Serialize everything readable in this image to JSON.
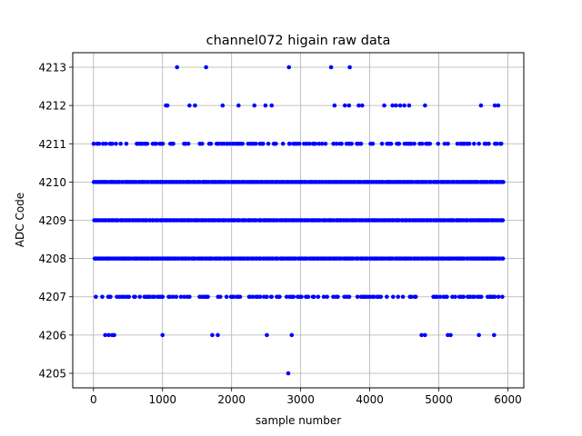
{
  "chart_data": {
    "type": "scatter",
    "title": "channel072 higain raw data",
    "xlabel": "sample number",
    "ylabel": "ADC Code",
    "xlim": [
      -300,
      6230
    ],
    "ylim": [
      4204.62,
      4213.38
    ],
    "xticks": [
      0,
      1000,
      2000,
      3000,
      4000,
      5000,
      6000
    ],
    "yticks": [
      4205,
      4206,
      4207,
      4208,
      4209,
      4210,
      4211,
      4212,
      4213
    ],
    "grid": true,
    "marker_color": "#0000ff",
    "sample_range": [
      0,
      5930
    ],
    "dense_levels": [
      4207,
      4208,
      4209,
      4210,
      4211
    ],
    "sparse_points": [
      {
        "y": 4213,
        "x": [
          1210,
          1630,
          2830,
          3440,
          3710
        ]
      },
      {
        "y": 4212,
        "x": [
          1050,
          1070,
          1390,
          1470,
          1870,
          2100,
          2330,
          2490,
          2580,
          3490,
          3640,
          3700,
          3840,
          3890,
          4210,
          4330,
          4380,
          4440,
          4500,
          4570,
          4800,
          5610,
          5810,
          5860
        ]
      },
      {
        "y": 4206,
        "x": [
          170,
          220,
          270,
          300,
          1000,
          1720,
          1800,
          2510,
          2870,
          4750,
          4800,
          5130,
          5170,
          5580,
          5800
        ]
      },
      {
        "y": 4205,
        "x": [
          2820
        ]
      }
    ]
  }
}
